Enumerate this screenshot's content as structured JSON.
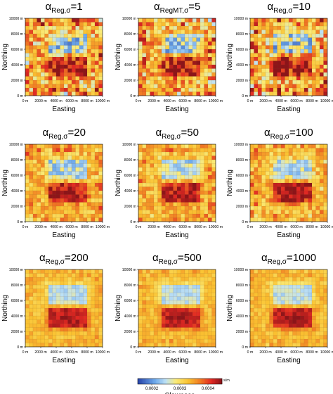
{
  "chart_data": {
    "type": "heatmap",
    "panels": [
      {
        "greek": "α",
        "sub": "Reg,σ",
        "value": "=1"
      },
      {
        "greek": "α",
        "sub": "RegMT,σ",
        "value": "=5"
      },
      {
        "greek": "α",
        "sub": "Reg,σ",
        "value": "=10"
      },
      {
        "greek": "α",
        "sub": "Reg,σ",
        "value": "=20"
      },
      {
        "greek": "α",
        "sub": "Reg,σ",
        "value": "=50"
      },
      {
        "greek": "α",
        "sub": "Reg,σ",
        "value": "=100"
      },
      {
        "greek": "α",
        "sub": "Reg,σ",
        "value": "=200"
      },
      {
        "greek": "α",
        "sub": "Reg,σ",
        "value": "=500"
      },
      {
        "greek": "α",
        "sub": "Reg,σ",
        "value": "=1000"
      }
    ],
    "xlabel": "Easting",
    "ylabel": "Northing",
    "x_ticks": [
      "0 m",
      "2000 m",
      "4000 m",
      "6000 m",
      "8000 m",
      "10000 m"
    ],
    "y_ticks": [
      "0 m",
      "2000 m",
      "4000 m",
      "6000 m",
      "8000 m",
      "10000 m"
    ],
    "xlim": [
      0,
      10000
    ],
    "ylim": [
      0,
      10000
    ],
    "grid_size": 20,
    "colorbar": {
      "label": "Slowness",
      "unit": "s/m",
      "ticks": [
        "0.0002",
        "0.0003",
        "0.0004"
      ],
      "range": [
        0.00015,
        0.00045
      ]
    },
    "anomalies": [
      {
        "name": "low slowness",
        "x": [
          3000,
          8000
        ],
        "y": [
          5500,
          8000
        ],
        "slowness": 0.00025
      },
      {
        "name": "high slowness",
        "x": [
          3000,
          8000
        ],
        "y": [
          2500,
          5000
        ],
        "slowness": 0.00042
      }
    ],
    "background_slowness": 0.00033
  }
}
